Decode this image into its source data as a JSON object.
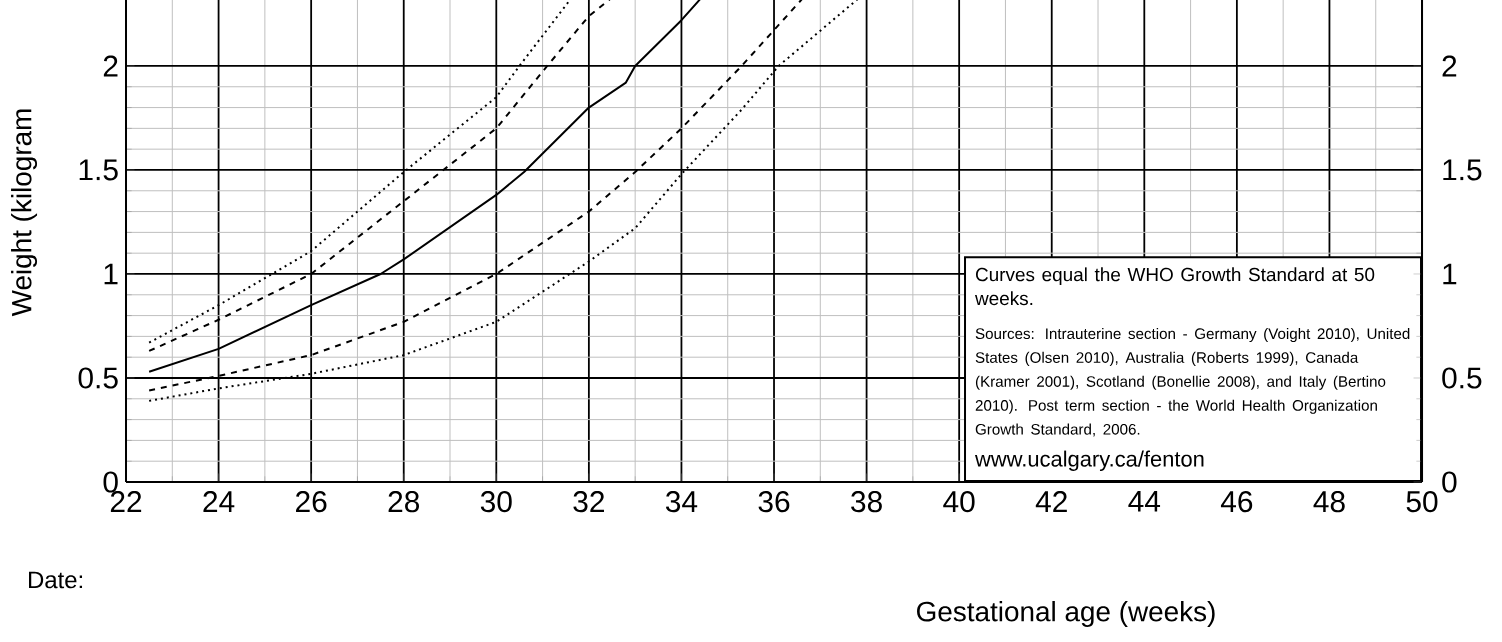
{
  "chart_data": {
    "type": "line",
    "xlabel": "Gestational age (weeks)",
    "ylabel": "Weight (kilogram",
    "xlim": [
      22,
      50
    ],
    "xticks": [
      22,
      24,
      26,
      28,
      30,
      32,
      34,
      36,
      38,
      40,
      42,
      44,
      46,
      48,
      50
    ],
    "ylim": [
      0,
      2.32
    ],
    "yticks": [
      0,
      0.5,
      1,
      1.5,
      2
    ],
    "y2lim": [
      0,
      2.32
    ],
    "y2ticks": [
      0,
      0.5,
      1,
      1.5,
      2
    ],
    "grid": true,
    "marker": "none",
    "series": [
      {
        "color": "#000000",
        "line_style": "dotted",
        "x": [
          22.5,
          24,
          26,
          28,
          30,
          30.5,
          31.6
        ],
        "values": [
          0.67,
          0.85,
          1.11,
          1.49,
          1.85,
          2.0,
          2.32
        ]
      },
      {
        "color": "#000000",
        "line_style": "dashed",
        "x": [
          22.5,
          24,
          26,
          28,
          30,
          31.1,
          32,
          32.45
        ],
        "values": [
          0.63,
          0.78,
          1.0,
          1.35,
          1.7,
          2.0,
          2.24,
          2.32
        ]
      },
      {
        "color": "#000000",
        "line_style": "solid",
        "x": [
          22.5,
          24,
          26,
          27.5,
          28,
          30,
          30.6,
          32,
          32.8,
          33,
          34,
          34.4
        ],
        "values": [
          0.53,
          0.64,
          0.85,
          1.0,
          1.07,
          1.38,
          1.49,
          1.8,
          1.92,
          2.0,
          2.22,
          2.32
        ]
      },
      {
        "color": "#000000",
        "line_style": "dashed",
        "x": [
          22.5,
          24,
          26,
          28,
          30,
          32,
          33,
          34,
          35.3,
          36.6
        ],
        "values": [
          0.44,
          0.51,
          0.61,
          0.77,
          1.0,
          1.3,
          1.49,
          1.7,
          2.0,
          2.32
        ]
      },
      {
        "color": "#000000",
        "line_style": "dotted",
        "x": [
          22.5,
          24,
          26,
          28,
          30,
          32,
          33,
          34,
          35.3,
          36.1,
          37.8
        ],
        "values": [
          0.39,
          0.45,
          0.52,
          0.61,
          0.77,
          1.06,
          1.22,
          1.48,
          1.79,
          2.0,
          2.32
        ]
      }
    ],
    "annotations": [
      "Curves equal the WHO Growth Standard at 50 weeks.",
      "Sources: Intrauterine section - Germany (Voight 2010), United States (Olsen 2010), Australia (Roberts 1999), Canada (Kramer 2001), Scotland (Bonellie 2008), and Italy (Bertino 2010). Post term section - the World Health Organization Growth Standard, 2006.",
      "www.ucalgary.ca/fenton",
      "Date:"
    ]
  }
}
